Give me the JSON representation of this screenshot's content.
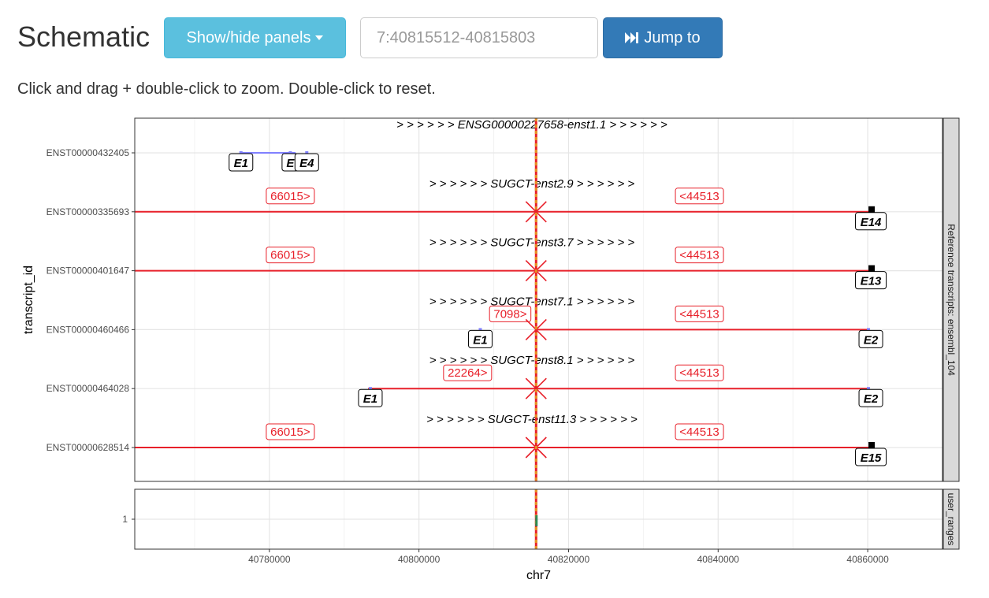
{
  "header": {
    "title": "Schematic",
    "panels_button": "Show/hide panels",
    "location_placeholder": "7:40815512-40815803",
    "jump_button": "Jump to",
    "instructions": "Click and drag + double-click to zoom. Double-click to reset."
  },
  "chart_data": {
    "type": "genomic-track",
    "y_axis_label": "transcript_id",
    "x_axis_label": "chr7",
    "x_range": [
      40762000,
      40870000
    ],
    "x_ticks": [
      40780000,
      40800000,
      40820000,
      40840000,
      40860000
    ],
    "x_tick_labels": [
      "40780000",
      "40800000",
      "40820000",
      "40840000",
      "40860000"
    ],
    "cursor_position": 40815660,
    "top_panel_label": "Reference transcripts: ensembl_104",
    "bottom_panel_label": "user_ranges",
    "bottom_panel_tick": "1",
    "transcripts": [
      {
        "id": "ENST00000432405",
        "title": "> > > > > > ENSG00000227658-enst1.1 > > > > > >",
        "exons": [
          {
            "label": "E1",
            "pos": 40776200
          },
          {
            "label": "E",
            "pos": 40782800
          },
          {
            "label": "E4",
            "pos": 40785000
          }
        ],
        "line": {
          "from": 40776200,
          "to": 40783500,
          "color": "#8080ff"
        }
      },
      {
        "id": "ENST00000335693",
        "title": "> > > > > > SUGCT-enst2.9 > > > > > >",
        "left_count": "66015>",
        "right_count": "<44513",
        "left_count_pos": 40782800,
        "right_count_pos": 40837500,
        "exons": [
          {
            "label": "E14",
            "pos": 40860100
          }
        ],
        "line": {
          "from": 40762000,
          "to": 40860200,
          "color": "#e8202a"
        }
      },
      {
        "id": "ENST00000401647",
        "title": "> > > > > > SUGCT-enst3.7 > > > > > >",
        "left_count": "66015>",
        "right_count": "<44513",
        "left_count_pos": 40782800,
        "right_count_pos": 40837500,
        "exons": [
          {
            "label": "E13",
            "pos": 40860100
          }
        ],
        "line": {
          "from": 40762000,
          "to": 40860200,
          "color": "#e8202a"
        }
      },
      {
        "id": "ENST00000460466",
        "title": "> > > > > > SUGCT-enst7.1 > > > > > >",
        "left_count": "7098>",
        "right_count": "<44513",
        "left_count_pos": 40812200,
        "right_count_pos": 40837500,
        "exons": [
          {
            "label": "E1",
            "pos": 40808200
          },
          {
            "label": "E2",
            "pos": 40860100
          }
        ],
        "line": {
          "from": 40815600,
          "to": 40860200,
          "color": "#e8202a"
        }
      },
      {
        "id": "ENST00000464028",
        "title": "> > > > > > SUGCT-enst8.1 > > > > > >",
        "left_count": "22264>",
        "right_count": "<44513",
        "left_count_pos": 40806500,
        "right_count_pos": 40837500,
        "exons": [
          {
            "label": "E1",
            "pos": 40793500
          },
          {
            "label": "E2",
            "pos": 40860100
          }
        ],
        "line": {
          "from": 40793200,
          "to": 40860200,
          "color": "#e8202a"
        }
      },
      {
        "id": "ENST00000628514",
        "title": "> > > > > > SUGCT-enst11.3 > > > > > >",
        "left_count": "66015>",
        "right_count": "<44513",
        "left_count_pos": 40782800,
        "right_count_pos": 40837500,
        "exons": [
          {
            "label": "E15",
            "pos": 40860100
          }
        ],
        "line": {
          "from": 40762000,
          "to": 40860200,
          "color": "#e8202a"
        }
      }
    ]
  }
}
